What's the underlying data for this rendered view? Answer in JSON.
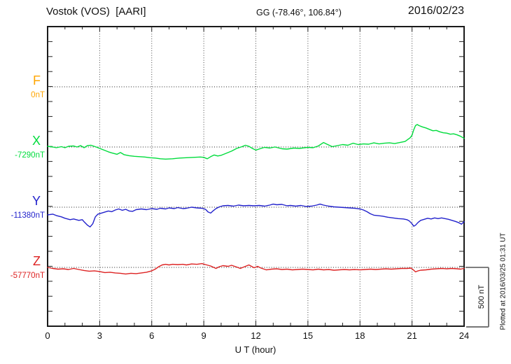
{
  "header": {
    "station": "Vostok (VOS)  [AARI]",
    "coords": "GG (-78.46°, 106.84°)",
    "date": "2016/02/23"
  },
  "axis": {
    "x_ticks": [
      "0",
      "3",
      "6",
      "9",
      "12",
      "15",
      "18",
      "21",
      "24"
    ],
    "x_label": "U T (hour)"
  },
  "components": [
    {
      "id": "F",
      "label": "F",
      "value": "0nT",
      "color": "#FFA500"
    },
    {
      "id": "X",
      "label": "X",
      "value": "-7290nT",
      "color": "#00DC3C"
    },
    {
      "id": "Y",
      "label": "Y",
      "value": "-11380nT",
      "color": "#2222CC"
    },
    {
      "id": "Z",
      "label": "Z",
      "value": "-57770nT",
      "color": "#DD2222"
    }
  ],
  "scale_bar": {
    "label": "500 nT",
    "nT": 500
  },
  "footer_note": "Plotted at 2016/03/25 01:31 UT",
  "chart_data": {
    "type": "line",
    "title": "Vostok (VOS) [AARI] magnetogram 2016/02/23",
    "xlabel": "U T (hour)",
    "x_range": [
      0,
      24
    ],
    "x_major_tick_step": 3,
    "x_minor_tick_step": 1,
    "grid": "dotted vertical at 3h steps, dotted horizontal at each component baseline",
    "legend_position": "left margin, stacked labels F/X/Y/Z with baseline values",
    "y_scale_note": "one division between baselines ~500 nT (scale bar at lower right)",
    "series": [
      {
        "name": "F",
        "baseline_label": "0nT",
        "color": "#FFA500",
        "points": []
      },
      {
        "name": "X",
        "baseline_label": "-7290nT",
        "color": "#00DC3C",
        "points": [
          [
            0,
            6
          ],
          [
            0.3,
            0
          ],
          [
            0.5,
            -6
          ],
          [
            0.8,
            3
          ],
          [
            1,
            -6
          ],
          [
            1.2,
            6
          ],
          [
            1.5,
            9
          ],
          [
            1.7,
            0
          ],
          [
            1.9,
            12
          ],
          [
            2.1,
            -6
          ],
          [
            2.3,
            12
          ],
          [
            2.5,
            15
          ],
          [
            2.8,
            0
          ],
          [
            3,
            -12
          ],
          [
            3.3,
            -29
          ],
          [
            3.5,
            -41
          ],
          [
            3.7,
            -50
          ],
          [
            4,
            -62
          ],
          [
            4.2,
            -47
          ],
          [
            4.4,
            -65
          ],
          [
            4.7,
            -74
          ],
          [
            5,
            -79
          ],
          [
            5.3,
            -82
          ],
          [
            5.6,
            -85
          ],
          [
            5.9,
            -91
          ],
          [
            6.2,
            -94
          ],
          [
            6.5,
            -100
          ],
          [
            6.8,
            -103
          ],
          [
            7.2,
            -100
          ],
          [
            7.6,
            -94
          ],
          [
            8,
            -91
          ],
          [
            8.4,
            -88
          ],
          [
            8.8,
            -85
          ],
          [
            9,
            -88
          ],
          [
            9.2,
            -100
          ],
          [
            9.4,
            -82
          ],
          [
            9.6,
            -68
          ],
          [
            9.8,
            -76
          ],
          [
            10,
            -71
          ],
          [
            10.3,
            -53
          ],
          [
            10.6,
            -35
          ],
          [
            10.9,
            -12
          ],
          [
            11.2,
            3
          ],
          [
            11.4,
            15
          ],
          [
            11.6,
            6
          ],
          [
            11.8,
            -12
          ],
          [
            12,
            -26
          ],
          [
            12.3,
            -12
          ],
          [
            12.5,
            -3
          ],
          [
            12.8,
            -9
          ],
          [
            13.1,
            0
          ],
          [
            13.5,
            -15
          ],
          [
            13.8,
            -18
          ],
          [
            14.2,
            -9
          ],
          [
            14.5,
            -12
          ],
          [
            15,
            -3
          ],
          [
            15.3,
            -6
          ],
          [
            15.6,
            9
          ],
          [
            15.9,
            38
          ],
          [
            16.1,
            24
          ],
          [
            16.4,
            3
          ],
          [
            16.7,
            12
          ],
          [
            17,
            21
          ],
          [
            17.3,
            15
          ],
          [
            17.6,
            32
          ],
          [
            17.9,
            21
          ],
          [
            18.2,
            26
          ],
          [
            18.5,
            24
          ],
          [
            18.8,
            35
          ],
          [
            19.1,
            26
          ],
          [
            19.4,
            32
          ],
          [
            19.7,
            35
          ],
          [
            20,
            29
          ],
          [
            20.3,
            38
          ],
          [
            20.6,
            47
          ],
          [
            20.9,
            79
          ],
          [
            21,
            100
          ],
          [
            21.1,
            147
          ],
          [
            21.2,
            182
          ],
          [
            21.3,
            191
          ],
          [
            21.4,
            182
          ],
          [
            21.6,
            171
          ],
          [
            21.8,
            162
          ],
          [
            22,
            150
          ],
          [
            22.2,
            138
          ],
          [
            22.4,
            141
          ],
          [
            22.6,
            129
          ],
          [
            22.8,
            121
          ],
          [
            23,
            118
          ],
          [
            23.2,
            109
          ],
          [
            23.4,
            112
          ],
          [
            23.6,
            103
          ],
          [
            23.8,
            91
          ],
          [
            24,
            74
          ]
        ]
      },
      {
        "name": "Y",
        "baseline_label": "-11380nT",
        "color": "#2222CC",
        "points": [
          [
            0,
            -65
          ],
          [
            0.3,
            -59
          ],
          [
            0.5,
            -71
          ],
          [
            0.8,
            -82
          ],
          [
            1,
            -94
          ],
          [
            1.3,
            -106
          ],
          [
            1.5,
            -100
          ],
          [
            1.8,
            -112
          ],
          [
            2,
            -106
          ],
          [
            2.1,
            -124
          ],
          [
            2.3,
            -153
          ],
          [
            2.45,
            -168
          ],
          [
            2.6,
            -141
          ],
          [
            2.75,
            -82
          ],
          [
            2.9,
            -59
          ],
          [
            3.1,
            -50
          ],
          [
            3.3,
            -41
          ],
          [
            3.5,
            -32
          ],
          [
            3.7,
            -38
          ],
          [
            3.9,
            -24
          ],
          [
            4.1,
            -15
          ],
          [
            4.3,
            -26
          ],
          [
            4.5,
            -18
          ],
          [
            4.7,
            -32
          ],
          [
            4.9,
            -35
          ],
          [
            5.1,
            -21
          ],
          [
            5.4,
            -15
          ],
          [
            5.7,
            -21
          ],
          [
            6,
            -12
          ],
          [
            6.3,
            -18
          ],
          [
            6.5,
            -9
          ],
          [
            6.8,
            -15
          ],
          [
            7,
            -6
          ],
          [
            7.3,
            -12
          ],
          [
            7.5,
            -3
          ],
          [
            7.8,
            -12
          ],
          [
            8,
            -9
          ],
          [
            8.3,
            0
          ],
          [
            8.6,
            -6
          ],
          [
            8.9,
            -9
          ],
          [
            9.1,
            -18
          ],
          [
            9.25,
            -41
          ],
          [
            9.4,
            -50
          ],
          [
            9.55,
            -29
          ],
          [
            9.7,
            -12
          ],
          [
            9.9,
            3
          ],
          [
            10.1,
            12
          ],
          [
            10.4,
            15
          ],
          [
            10.7,
            9
          ],
          [
            11,
            18
          ],
          [
            11.3,
            12
          ],
          [
            11.6,
            15
          ],
          [
            11.9,
            12
          ],
          [
            12.2,
            15
          ],
          [
            12.5,
            9
          ],
          [
            12.8,
            18
          ],
          [
            13,
            26
          ],
          [
            13.2,
            21
          ],
          [
            13.5,
            24
          ],
          [
            13.8,
            12
          ],
          [
            14,
            15
          ],
          [
            14.3,
            9
          ],
          [
            14.6,
            15
          ],
          [
            14.9,
            6
          ],
          [
            15.2,
            9
          ],
          [
            15.5,
            18
          ],
          [
            15.7,
            26
          ],
          [
            15.9,
            18
          ],
          [
            16.2,
            9
          ],
          [
            16.5,
            3
          ],
          [
            16.8,
            0
          ],
          [
            17.1,
            -3
          ],
          [
            17.4,
            -6
          ],
          [
            17.7,
            -9
          ],
          [
            18,
            -15
          ],
          [
            18.2,
            -24
          ],
          [
            18.4,
            -38
          ],
          [
            18.6,
            -56
          ],
          [
            18.8,
            -68
          ],
          [
            19,
            -71
          ],
          [
            19.3,
            -76
          ],
          [
            19.6,
            -85
          ],
          [
            19.9,
            -91
          ],
          [
            20.2,
            -97
          ],
          [
            20.5,
            -100
          ],
          [
            20.7,
            -106
          ],
          [
            20.85,
            -118
          ],
          [
            21,
            -141
          ],
          [
            21.1,
            -162
          ],
          [
            21.2,
            -153
          ],
          [
            21.35,
            -129
          ],
          [
            21.5,
            -112
          ],
          [
            21.7,
            -103
          ],
          [
            21.9,
            -94
          ],
          [
            22.1,
            -100
          ],
          [
            22.3,
            -91
          ],
          [
            22.5,
            -97
          ],
          [
            22.7,
            -91
          ],
          [
            22.9,
            -97
          ],
          [
            23.1,
            -103
          ],
          [
            23.3,
            -112
          ],
          [
            23.5,
            -121
          ],
          [
            23.7,
            -132
          ],
          [
            23.85,
            -144
          ],
          [
            23.95,
            -129
          ],
          [
            24,
            -124
          ]
        ]
      },
      {
        "name": "Z",
        "baseline_label": "-57770nT",
        "color": "#DD2222",
        "points": [
          [
            0,
            0
          ],
          [
            0.3,
            -9
          ],
          [
            0.6,
            -15
          ],
          [
            0.9,
            -12
          ],
          [
            1.2,
            -18
          ],
          [
            1.5,
            -9
          ],
          [
            1.8,
            -18
          ],
          [
            2.1,
            -26
          ],
          [
            2.4,
            -32
          ],
          [
            2.7,
            -29
          ],
          [
            3,
            -35
          ],
          [
            3.3,
            -44
          ],
          [
            3.6,
            -41
          ],
          [
            3.9,
            -47
          ],
          [
            4.2,
            -50
          ],
          [
            4.5,
            -56
          ],
          [
            4.8,
            -50
          ],
          [
            5.1,
            -53
          ],
          [
            5.4,
            -47
          ],
          [
            5.7,
            -41
          ],
          [
            6,
            -29
          ],
          [
            6.2,
            -15
          ],
          [
            6.4,
            6
          ],
          [
            6.6,
            21
          ],
          [
            6.8,
            26
          ],
          [
            7,
            21
          ],
          [
            7.2,
            26
          ],
          [
            7.5,
            24
          ],
          [
            7.8,
            26
          ],
          [
            8,
            21
          ],
          [
            8.3,
            29
          ],
          [
            8.6,
            26
          ],
          [
            8.9,
            32
          ],
          [
            9.1,
            24
          ],
          [
            9.4,
            12
          ],
          [
            9.7,
            -9
          ],
          [
            9.9,
            6
          ],
          [
            10.1,
            15
          ],
          [
            10.4,
            9
          ],
          [
            10.6,
            18
          ],
          [
            10.9,
            3
          ],
          [
            11.1,
            -9
          ],
          [
            11.4,
            9
          ],
          [
            11.6,
            21
          ],
          [
            11.9,
            -3
          ],
          [
            12.1,
            9
          ],
          [
            12.3,
            -6
          ],
          [
            12.6,
            -21
          ],
          [
            12.9,
            -15
          ],
          [
            13.2,
            -12
          ],
          [
            13.5,
            -18
          ],
          [
            13.8,
            -15
          ],
          [
            14.1,
            -21
          ],
          [
            14.4,
            -18
          ],
          [
            14.7,
            -15
          ],
          [
            15,
            -18
          ],
          [
            15.3,
            -21
          ],
          [
            15.6,
            -15
          ],
          [
            15.9,
            -21
          ],
          [
            16.2,
            -18
          ],
          [
            16.5,
            -24
          ],
          [
            16.8,
            -21
          ],
          [
            17.1,
            -18
          ],
          [
            17.4,
            -21
          ],
          [
            17.7,
            -18
          ],
          [
            18,
            -21
          ],
          [
            18.3,
            -18
          ],
          [
            18.6,
            -15
          ],
          [
            18.9,
            -18
          ],
          [
            19.2,
            -15
          ],
          [
            19.5,
            -12
          ],
          [
            19.8,
            -15
          ],
          [
            20.1,
            -12
          ],
          [
            20.4,
            -9
          ],
          [
            20.7,
            -9
          ],
          [
            20.95,
            -6
          ],
          [
            21.05,
            -18
          ],
          [
            21.2,
            -38
          ],
          [
            21.35,
            -29
          ],
          [
            21.5,
            -24
          ],
          [
            21.8,
            -21
          ],
          [
            22.1,
            -15
          ],
          [
            22.4,
            -12
          ],
          [
            22.7,
            -9
          ],
          [
            23,
            -12
          ],
          [
            23.3,
            -9
          ],
          [
            23.6,
            -12
          ],
          [
            23.8,
            -15
          ],
          [
            24,
            -9
          ]
        ]
      }
    ]
  }
}
